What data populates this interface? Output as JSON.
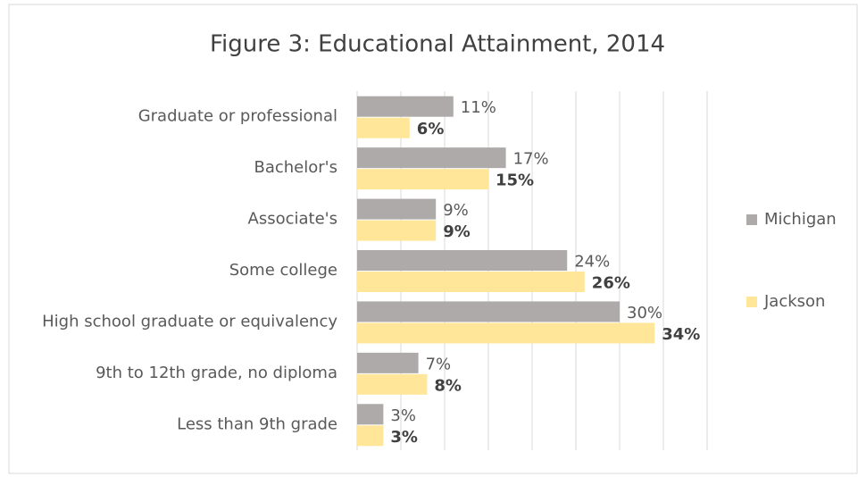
{
  "chart_data": {
    "type": "hbar",
    "title": "Figure 3: Educational Attainment, 2014",
    "categories": [
      "Graduate or professional",
      "Bachelor's",
      "Associate's",
      "Some college",
      "High school graduate or equivalency",
      "9th to 12th grade, no diploma",
      "Less than 9th grade"
    ],
    "series": [
      {
        "name": "Michigan",
        "color": "#aeaaaa",
        "values": [
          11,
          17,
          9,
          24,
          30,
          7,
          3
        ],
        "value_labels": [
          "11%",
          "17%",
          "9%",
          "24%",
          "30%",
          "7%",
          "3%"
        ]
      },
      {
        "name": "Jackson",
        "color": "#ffe699",
        "values": [
          6,
          15,
          9,
          26,
          34,
          8,
          3
        ],
        "value_labels": [
          "6%",
          "15%",
          "9%",
          "26%",
          "34%",
          "8%",
          "3%"
        ]
      }
    ],
    "xlim": [
      0,
      40
    ],
    "xticks": [
      0,
      5,
      10,
      15,
      20,
      25,
      30,
      35,
      40
    ],
    "grid": true,
    "legend": "right"
  }
}
